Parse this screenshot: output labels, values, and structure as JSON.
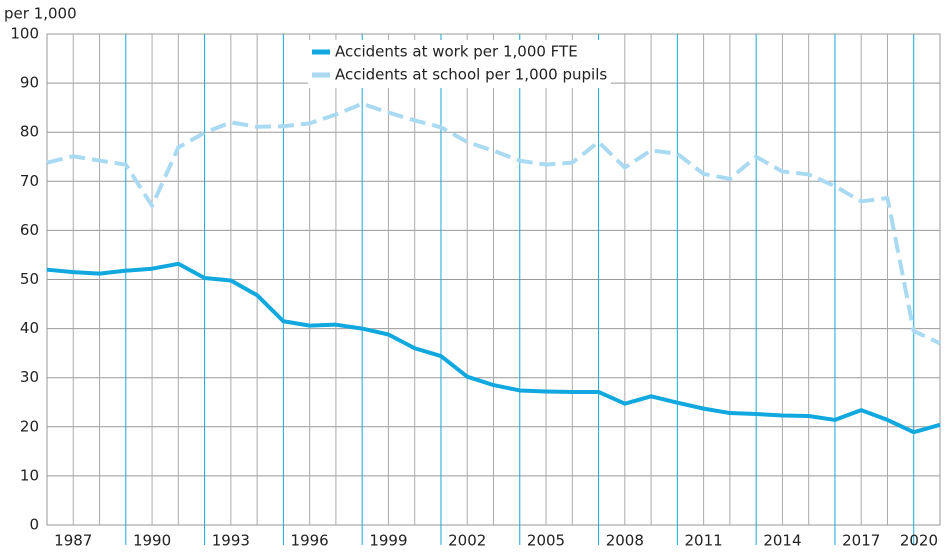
{
  "chart_data": {
    "type": "line",
    "ylabel": "per 1,000",
    "x": [
      1986,
      1987,
      1988,
      1989,
      1990,
      1991,
      1992,
      1993,
      1994,
      1995,
      1996,
      1997,
      1998,
      1999,
      2000,
      2001,
      2002,
      2003,
      2004,
      2005,
      2006,
      2007,
      2008,
      2009,
      2010,
      2011,
      2012,
      2013,
      2014,
      2015,
      2016,
      2017,
      2018,
      2019,
      2020
    ],
    "series": [
      {
        "name": "Accidents at work per 1,000 FTE",
        "color": "#10a8de",
        "style": "solid",
        "values": [
          52,
          51.5,
          51.2,
          51.8,
          52.2,
          53.2,
          50.3,
          49.8,
          46.8,
          41.5,
          40.6,
          40.8,
          40,
          38.8,
          36,
          34.4,
          30.2,
          28.5,
          27.4,
          27.2,
          27.1,
          27.1,
          24.7,
          26.2,
          24.9,
          23.7,
          22.8,
          22.6,
          22.3,
          22.2,
          21.4,
          23.4,
          21.4,
          18.9,
          20.4
        ]
      },
      {
        "name": "Accidents at school per 1,000 pupils",
        "color": "#a9daf2",
        "style": "dashed",
        "values": [
          73.8,
          75.1,
          74.2,
          73.4,
          65,
          76.9,
          79.9,
          82,
          81.1,
          81.2,
          81.8,
          83.6,
          85.8,
          84,
          82.4,
          81,
          78,
          76.2,
          74.2,
          73.4,
          73.8,
          78,
          72.8,
          76.3,
          75.6,
          71.5,
          70.5,
          75,
          72,
          71.4,
          69,
          65.9,
          66.6,
          39.5,
          37
        ]
      }
    ],
    "xlim": [
      1986,
      2020
    ],
    "xticks": [
      1987,
      1990,
      1993,
      1996,
      1999,
      2002,
      2005,
      2008,
      2011,
      2014,
      2017,
      2020
    ],
    "ylim": [
      0,
      100
    ],
    "yticks": [
      0,
      10,
      20,
      30,
      40,
      50,
      60,
      70,
      80,
      90,
      100
    ],
    "grid": true
  }
}
